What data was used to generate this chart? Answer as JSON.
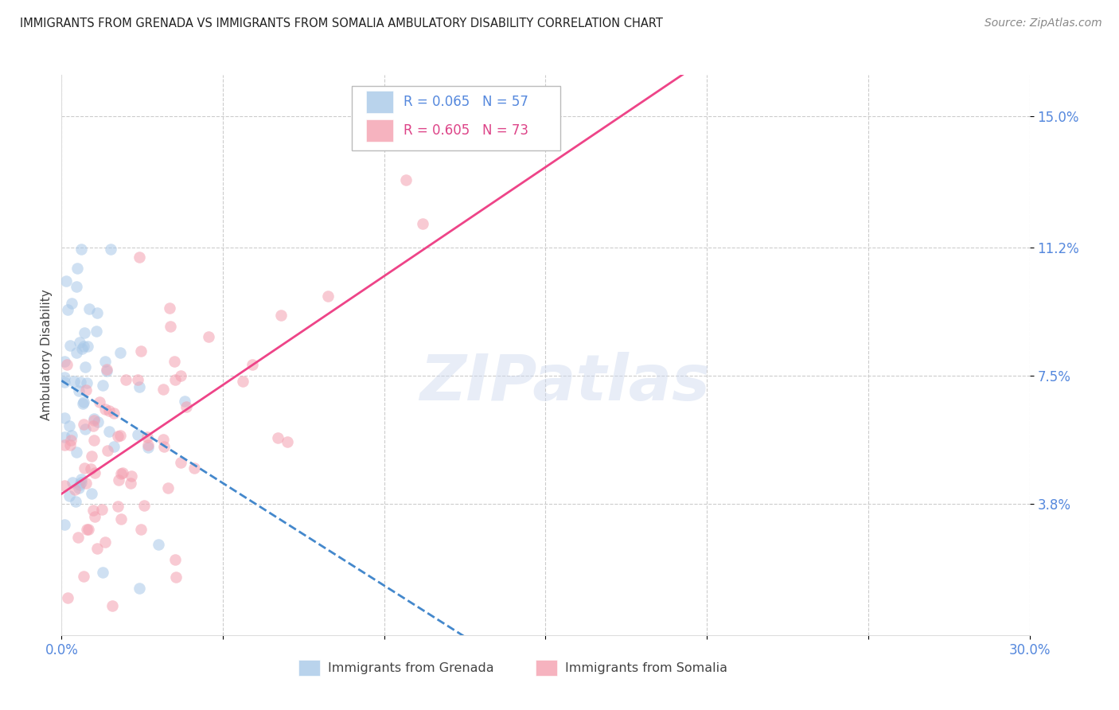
{
  "title": "IMMIGRANTS FROM GRENADA VS IMMIGRANTS FROM SOMALIA AMBULATORY DISABILITY CORRELATION CHART",
  "source": "Source: ZipAtlas.com",
  "ylabel": "Ambulatory Disability",
  "xlim": [
    0.0,
    0.3
  ],
  "ylim": [
    0.0,
    0.162
  ],
  "ytick_positions": [
    0.038,
    0.075,
    0.112,
    0.15
  ],
  "ytick_labels": [
    "3.8%",
    "7.5%",
    "11.2%",
    "15.0%"
  ],
  "xtick_positions": [
    0.0,
    0.05,
    0.1,
    0.15,
    0.2,
    0.25,
    0.3
  ],
  "xtick_labels": [
    "0.0%",
    "",
    "",
    "",
    "",
    "",
    "30.0%"
  ],
  "grenada_R": 0.065,
  "grenada_N": 57,
  "somalia_R": 0.605,
  "somalia_N": 73,
  "grenada_color": "#a8c8e8",
  "somalia_color": "#f4a0b0",
  "grenada_line_color": "#4488cc",
  "somalia_line_color": "#ee4488",
  "tick_color": "#5588dd",
  "background_color": "#ffffff",
  "watermark": "ZIPatlas",
  "legend_R1": "R = 0.065",
  "legend_N1": "N = 57",
  "legend_R2": "R = 0.605",
  "legend_N2": "N = 73",
  "bottom_label1": "Immigrants from Grenada",
  "bottom_label2": "Immigrants from Somalia"
}
